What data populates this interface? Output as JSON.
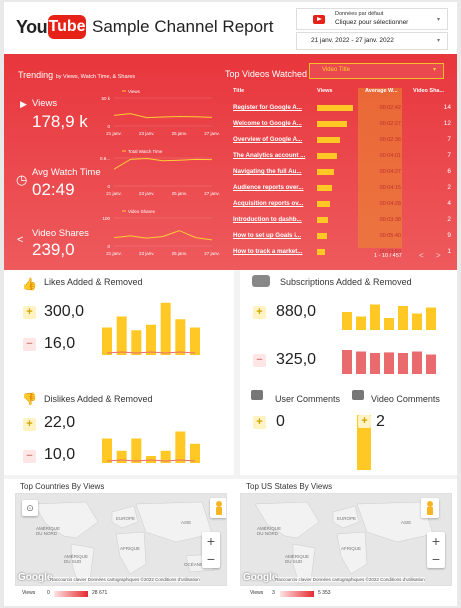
{
  "header": {
    "title": "Sample Channel Report",
    "source_line1": "Données par défaut",
    "source_line2": "Cliquez pour sélectionner",
    "date_range": "21 janv. 2022 - 27 janv. 2022",
    "logo_you": "You",
    "logo_tube": "Tube"
  },
  "trending": {
    "title": "Trending",
    "subtitle": "by Views, Watch Time, & Shares"
  },
  "kpis": [
    {
      "label": "Views",
      "value": "178,9 k",
      "chart_title": "Views",
      "ymax": "50 k",
      "ymin": "0",
      "xticks": [
        "21 janv.",
        "23 janv.",
        "25 janv.",
        "27 janv."
      ],
      "series": [
        38,
        44,
        30,
        32,
        34,
        33,
        31
      ]
    },
    {
      "label": "Avg Watch Time",
      "value": "02:49",
      "chart_title": "Total Watch Time",
      "ymax": "1770.6...",
      "ymin": "0",
      "xticks": [
        "21 janv.",
        "23 janv.",
        "25 janv.",
        "27 janv."
      ],
      "series": [
        60,
        95,
        98,
        90,
        92,
        95,
        94
      ]
    },
    {
      "label": "Video Shares",
      "value": "239,0",
      "chart_title": "Video Shares",
      "ymax": "100",
      "ymin": "0",
      "xticks": [
        "21 janv.",
        "23 janv.",
        "25 janv.",
        "27 janv."
      ],
      "series": [
        30,
        36,
        28,
        34,
        55,
        30,
        22
      ]
    }
  ],
  "top_videos": {
    "title": "Top Videos Watched",
    "dropdown": "Video Title",
    "columns": [
      "Title",
      "Views",
      "Average W...",
      "Video Sha..."
    ],
    "rows": [
      {
        "title": "Register for Google A...",
        "views_pct": 0.95,
        "avg": "00:02:42",
        "shares": "14"
      },
      {
        "title": "Welcome to Google A...",
        "views_pct": 0.8,
        "avg": "00:02:27",
        "shares": "12"
      },
      {
        "title": "Overview of Google A...",
        "views_pct": 0.6,
        "avg": "00:02:36",
        "shares": "7"
      },
      {
        "title": "The Analytics account ...",
        "views_pct": 0.52,
        "avg": "00:04:01",
        "shares": "7"
      },
      {
        "title": "Navigating the full Au...",
        "views_pct": 0.45,
        "avg": "00:04:27",
        "shares": "6"
      },
      {
        "title": "Audience reports over...",
        "views_pct": 0.4,
        "avg": "00:04:15",
        "shares": "2"
      },
      {
        "title": "Acquisition reports ov...",
        "views_pct": 0.35,
        "avg": "00:04:28",
        "shares": "4"
      },
      {
        "title": "Introduction to dashb...",
        "views_pct": 0.3,
        "avg": "00:03:38",
        "shares": "2"
      },
      {
        "title": "How to set up Goals i...",
        "views_pct": 0.27,
        "avg": "00:05:40",
        "shares": "9"
      },
      {
        "title": "How to track a market...",
        "views_pct": 0.22,
        "avg": "00:03:50",
        "shares": "1"
      }
    ],
    "pagination": "1 - 10 / 457",
    "prev": "<",
    "next": ">"
  },
  "likes": {
    "title": "Likes Added & Removed",
    "added": "300,0",
    "removed": "16,0",
    "bars": [
      0.5,
      0.7,
      0.45,
      0.55,
      0.95,
      0.65,
      0.5
    ]
  },
  "subs": {
    "title": "Subscriptions Added & Removed",
    "added": "880,0",
    "removed": "325,0",
    "bars_added": [
      0.6,
      0.45,
      0.85,
      0.4,
      0.8,
      0.55,
      0.75
    ],
    "bars_removed": [
      0.8,
      0.75,
      0.7,
      0.72,
      0.7,
      0.75,
      0.65
    ]
  },
  "dislikes": {
    "title": "Dislikes Added & Removed",
    "added": "22,0",
    "removed": "10,0",
    "bars": [
      0.7,
      0.35,
      0.7,
      0.2,
      0.35,
      0.9,
      0.55
    ]
  },
  "comments": {
    "user_title": "User Comments",
    "user_value": "0",
    "video_title": "Video Comments",
    "video_value": "2"
  },
  "maps": [
    {
      "title": "Top Countries By Views",
      "legend_label": "Views",
      "legend_min": "0",
      "legend_max": "28 671",
      "labels": [
        "AMÉRIQUE DU NORD",
        "EUROPE",
        "ASIE",
        "AFRIQUE",
        "AMÉRIQUE DU SUD",
        "OCÉANIE"
      ],
      "google": "Google",
      "attribution": "Raccourcis clavier   Données cartographiques ©2022   Conditions d'utilisation",
      "zoom_in": "+",
      "zoom_out": "−"
    },
    {
      "title": "Top US States By Views",
      "legend_label": "Views",
      "legend_min": "3",
      "legend_max": "5 353",
      "labels": [
        "AMÉRIQUE DU NORD",
        "EUROPE",
        "ASIE",
        "AFRIQUE",
        "AMÉRIQUE DU SUD"
      ],
      "google": "Google",
      "attribution": "Raccourcis clavier   Données cartographiques ©2022   Conditions d'utilisation",
      "zoom_in": "+",
      "zoom_out": "−"
    }
  ],
  "colors": {
    "accent_red": "#e7363c",
    "yellow": "#ffc824",
    "pink": "#e96b6e"
  }
}
